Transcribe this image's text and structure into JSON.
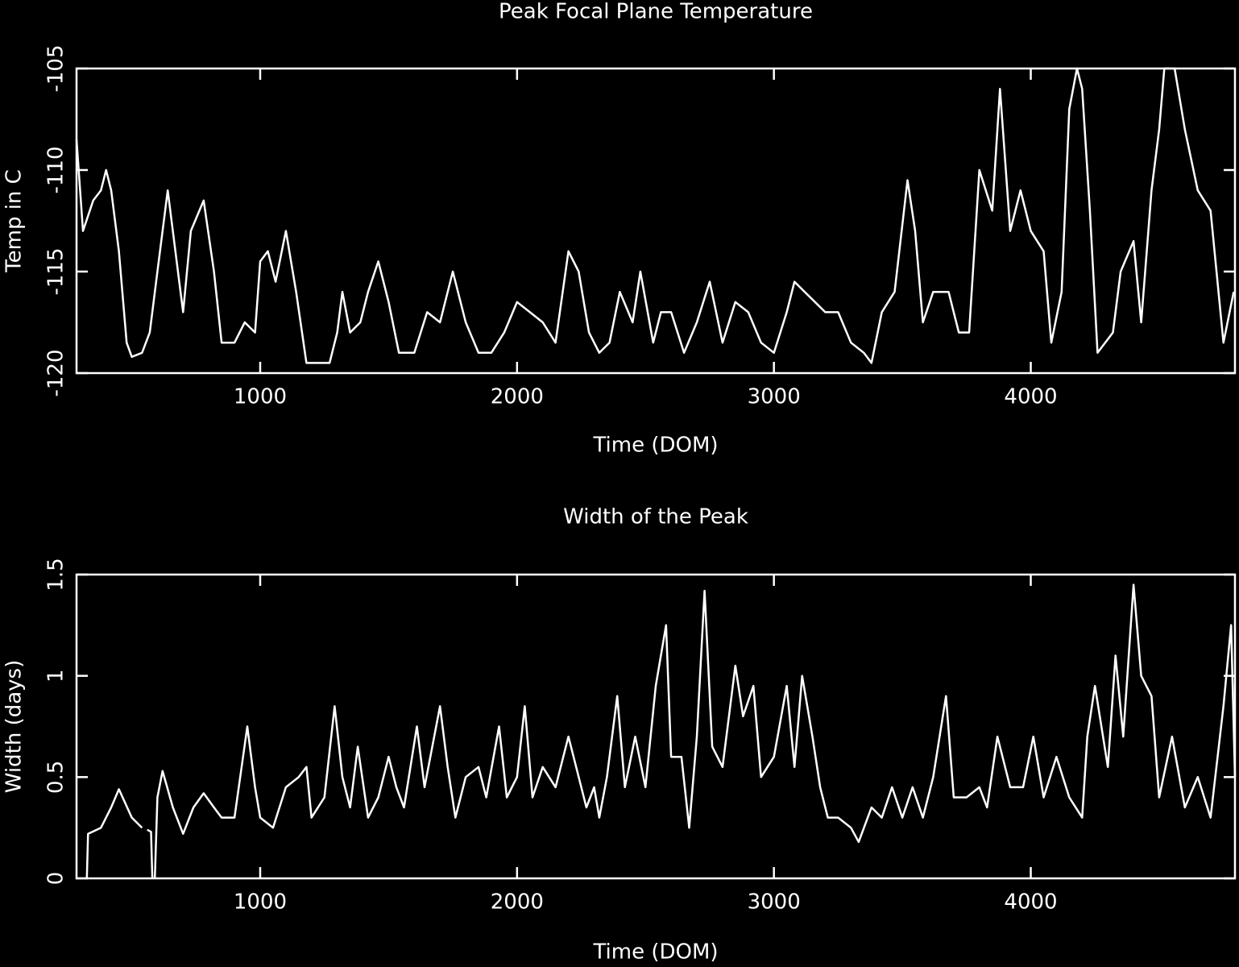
{
  "chart_data": [
    {
      "type": "line",
      "title": "Peak Focal Plane Temperature",
      "xlabel": "Time (DOM)",
      "ylabel": "Temp in C",
      "color": "#ffffff",
      "xlim": [
        285,
        4795
      ],
      "ylim": [
        -120,
        -105
      ],
      "xticks": [
        1000,
        2000,
        3000,
        4000
      ],
      "yticks": [
        -120,
        -115,
        -110,
        -105
      ],
      "x": [
        285,
        310,
        350,
        380,
        400,
        420,
        450,
        480,
        500,
        540,
        570,
        600,
        640,
        680,
        700,
        730,
        780,
        820,
        850,
        900,
        940,
        980,
        1000,
        1030,
        1060,
        1100,
        1140,
        1180,
        1230,
        1270,
        1300,
        1320,
        1350,
        1390,
        1420,
        1460,
        1500,
        1540,
        1600,
        1650,
        1700,
        1750,
        1800,
        1850,
        1900,
        1950,
        2000,
        2050,
        2100,
        2150,
        2200,
        2240,
        2280,
        2320,
        2360,
        2400,
        2450,
        2480,
        2530,
        2560,
        2600,
        2650,
        2700,
        2750,
        2800,
        2850,
        2900,
        2950,
        3000,
        3050,
        3080,
        3120,
        3160,
        3200,
        3250,
        3300,
        3350,
        3380,
        3420,
        3470,
        3520,
        3550,
        3580,
        3620,
        3680,
        3720,
        3760,
        3800,
        3850,
        3880,
        3920,
        3960,
        4000,
        4050,
        4080,
        4120,
        4150,
        4180,
        4200,
        4230,
        4260,
        4320,
        4350,
        4400,
        4430,
        4470,
        4500,
        4520,
        4560,
        4600,
        4650,
        4700,
        4750,
        4790
      ],
      "values": [
        -108.5,
        -113,
        -111.5,
        -111,
        -110,
        -111,
        -114,
        -118.5,
        -119.2,
        -119,
        -118,
        -115,
        -111,
        -115,
        -117,
        -113,
        -111.5,
        -115,
        -118.5,
        -118.5,
        -117.5,
        -118,
        -114.5,
        -114,
        -115.5,
        -113,
        -116,
        -119.5,
        -119.5,
        -119.5,
        -118,
        -116,
        -118,
        -117.5,
        -116,
        -114.5,
        -116.5,
        -119,
        -119,
        -117,
        -117.5,
        -115,
        -117.5,
        -119,
        -119,
        -118,
        -116.5,
        -117,
        -117.5,
        -118.5,
        -114,
        -115,
        -118,
        -119,
        -118.5,
        -116,
        -117.5,
        -115,
        -118.5,
        -117,
        -117,
        -119,
        -117.5,
        -115.5,
        -118.5,
        -116.5,
        -117,
        -118.5,
        -119,
        -117,
        -115.5,
        -116,
        -116.5,
        -117,
        -117,
        -118.5,
        -119,
        -119.5,
        -117,
        -116,
        -110.5,
        -113,
        -117.5,
        -116,
        -116,
        -118,
        -118,
        -110,
        -112,
        -106,
        -113,
        -111,
        -113,
        -114,
        -118.5,
        -116,
        -107,
        -105,
        -106,
        -112,
        -119,
        -118,
        -115,
        -113.5,
        -117.5,
        -111,
        -108,
        -105,
        -105,
        -108,
        -111,
        -112,
        -118.5,
        -116
      ]
    },
    {
      "type": "line",
      "title": "Width of the Peak",
      "xlabel": "Time (DOM)",
      "ylabel": "Width (days)",
      "color": "#ffffff",
      "xlim": [
        285,
        4795
      ],
      "ylim": [
        0,
        1.5
      ],
      "xticks": [
        1000,
        2000,
        3000,
        4000
      ],
      "yticks": [
        0,
        0.5,
        1,
        1.5
      ],
      "x": [
        325,
        330,
        380,
        420,
        450,
        500,
        540,
        550,
        560,
        575,
        580,
        585,
        590,
        600,
        620,
        660,
        700,
        740,
        780,
        820,
        850,
        900,
        950,
        980,
        1000,
        1050,
        1100,
        1150,
        1180,
        1200,
        1250,
        1290,
        1320,
        1350,
        1380,
        1420,
        1460,
        1500,
        1530,
        1560,
        1610,
        1640,
        1700,
        1730,
        1760,
        1800,
        1850,
        1880,
        1930,
        1960,
        2000,
        2030,
        2060,
        2100,
        2150,
        2200,
        2230,
        2270,
        2300,
        2320,
        2350,
        2390,
        2420,
        2460,
        2500,
        2540,
        2580,
        2600,
        2640,
        2670,
        2700,
        2730,
        2760,
        2800,
        2850,
        2880,
        2920,
        2950,
        3000,
        3050,
        3080,
        3110,
        3150,
        3180,
        3210,
        3250,
        3300,
        3330,
        3380,
        3420,
        3460,
        3500,
        3540,
        3580,
        3620,
        3670,
        3700,
        3750,
        3800,
        3830,
        3870,
        3920,
        3970,
        4010,
        4050,
        4100,
        4150,
        4200,
        4220,
        4250,
        4300,
        4330,
        4360,
        4400,
        4430,
        4470,
        4500,
        4550,
        4600,
        4650,
        4700,
        4750,
        4780,
        4795
      ],
      "values": [
        0,
        0.22,
        0.25,
        0.35,
        0.44,
        0.3,
        0.25,
        null,
        0.24,
        0.23,
        0,
        null,
        0,
        0.4,
        0.53,
        0.35,
        0.22,
        0.35,
        0.42,
        0.35,
        0.3,
        0.3,
        0.75,
        0.45,
        0.3,
        0.25,
        0.45,
        0.5,
        0.55,
        0.3,
        0.4,
        0.85,
        0.5,
        0.35,
        0.65,
        0.3,
        0.4,
        0.6,
        0.45,
        0.35,
        0.75,
        0.45,
        0.85,
        0.55,
        0.3,
        0.5,
        0.55,
        0.4,
        0.75,
        0.4,
        0.5,
        0.85,
        0.4,
        0.55,
        0.45,
        0.7,
        0.55,
        0.35,
        0.45,
        0.3,
        0.5,
        0.9,
        0.45,
        0.7,
        0.45,
        0.95,
        1.25,
        0.6,
        0.6,
        0.25,
        0.7,
        1.42,
        0.65,
        0.55,
        1.05,
        0.8,
        0.95,
        0.5,
        0.6,
        0.95,
        0.55,
        1.0,
        0.7,
        0.45,
        0.3,
        0.3,
        0.25,
        0.18,
        0.35,
        0.3,
        0.45,
        0.3,
        0.45,
        0.3,
        0.5,
        0.9,
        0.4,
        0.4,
        0.45,
        0.35,
        0.7,
        0.45,
        0.45,
        0.7,
        0.4,
        0.6,
        0.4,
        0.3,
        0.7,
        0.95,
        0.55,
        1.1,
        0.7,
        1.45,
        1.0,
        0.9,
        0.4,
        0.7,
        0.35,
        0.5,
        0.3,
        0.85,
        1.25,
        0.5
      ]
    }
  ]
}
